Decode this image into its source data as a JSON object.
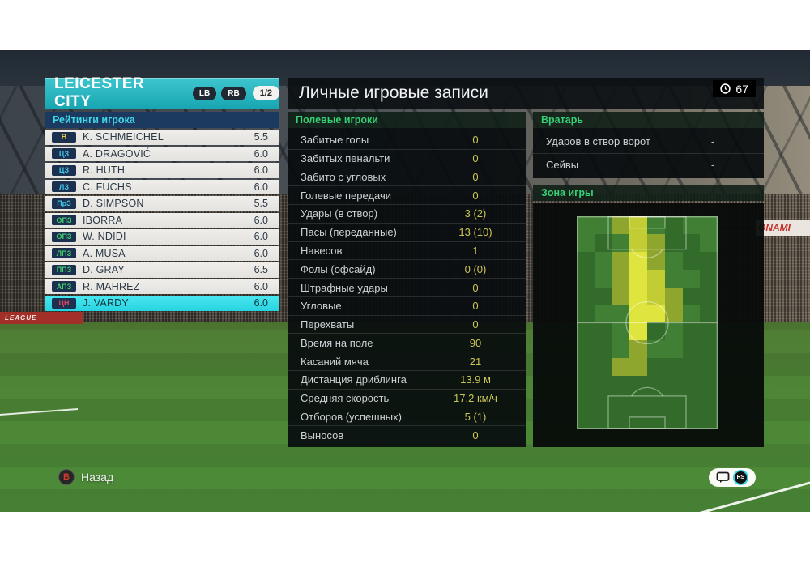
{
  "header": {
    "team_name": "LEICESTER CITY",
    "prev_button": "LB",
    "next_button": "RB",
    "page_indicator": "1/2",
    "clock_value": "67"
  },
  "ratings_panel": {
    "title": "Рейтинги игрока",
    "players": [
      {
        "pos": "В",
        "pos_color": "#e6d23c",
        "name": "K. SCHMEICHEL",
        "rating": "5.5",
        "selected": false
      },
      {
        "pos": "ЦЗ",
        "pos_color": "#41c8e8",
        "name": "A. DRAGOVIĆ",
        "rating": "6.0",
        "selected": false
      },
      {
        "pos": "ЦЗ",
        "pos_color": "#41c8e8",
        "name": "R. HUTH",
        "rating": "6.0",
        "selected": false
      },
      {
        "pos": "ЛЗ",
        "pos_color": "#41c8e8",
        "name": "C. FUCHS",
        "rating": "6.0",
        "selected": false
      },
      {
        "pos": "ПрЗ",
        "pos_color": "#41c8e8",
        "name": "D. SIMPSON",
        "rating": "5.5",
        "selected": false
      },
      {
        "pos": "ОПЗ",
        "pos_color": "#43d16b",
        "name": "IBORRA",
        "rating": "6.0",
        "selected": false
      },
      {
        "pos": "ОПЗ",
        "pos_color": "#43d16b",
        "name": "W. NDIDI",
        "rating": "6.0",
        "selected": false
      },
      {
        "pos": "ЛПЗ",
        "pos_color": "#43d16b",
        "name": "A. MUSA",
        "rating": "6.0",
        "selected": false
      },
      {
        "pos": "ППЗ",
        "pos_color": "#43d16b",
        "name": "D. GRAY",
        "rating": "6.5",
        "selected": false
      },
      {
        "pos": "АПЗ",
        "pos_color": "#43d16b",
        "name": "R. MAHREZ",
        "rating": "6.0",
        "selected": false
      },
      {
        "pos": "ЦН",
        "pos_color": "#e0475e",
        "name": "J. VARDY",
        "rating": "6.0",
        "selected": true
      }
    ]
  },
  "records_panel": {
    "title": "Личные игровые записи",
    "field_players_section": {
      "title": "Полевые игроки",
      "stats": [
        {
          "label": "Забитые голы",
          "value": "0"
        },
        {
          "label": "Забитых пенальти",
          "value": "0"
        },
        {
          "label": "Забито с угловых",
          "value": "0"
        },
        {
          "label": "Голевые передачи",
          "value": "0"
        },
        {
          "label": "Удары (в створ)",
          "value": "3 (2)"
        },
        {
          "label": "Пасы (переданные)",
          "value": "13 (10)"
        },
        {
          "label": "Навесов",
          "value": "1"
        },
        {
          "label": "Фолы (офсайд)",
          "value": "0 (0)"
        },
        {
          "label": "Штрафные удары",
          "value": "0"
        },
        {
          "label": "Угловые",
          "value": "0"
        },
        {
          "label": "Перехваты",
          "value": "0"
        },
        {
          "label": "Время на поле",
          "value": "90"
        },
        {
          "label": "Касаний мяча",
          "value": "21"
        },
        {
          "label": "Дистанция дриблинга",
          "value": "13.9 м"
        },
        {
          "label": "Средняя скорость",
          "value": "17.2 км/ч"
        },
        {
          "label": "Отборов (успешных)",
          "value": "5 (1)"
        },
        {
          "label": "Выносов",
          "value": "0"
        }
      ]
    },
    "goalkeeper_section": {
      "title": "Вратарь",
      "stats": [
        {
          "label": "Ударов в створ ворот",
          "value": "-"
        },
        {
          "label": "Сейвы",
          "value": "-"
        }
      ]
    },
    "zone_section": {
      "title": "Зона игры"
    }
  },
  "heatmap": {
    "palette": [
      "#2a5e26",
      "#336b2a",
      "#417f34",
      "#8fa62e",
      "#c2cc33",
      "#dfe53e"
    ],
    "grid": [
      [
        2,
        2,
        3,
        4,
        2,
        1,
        2,
        2
      ],
      [
        2,
        1,
        2,
        4,
        3,
        1,
        1,
        2
      ],
      [
        1,
        2,
        3,
        5,
        3,
        2,
        1,
        1
      ],
      [
        1,
        2,
        3,
        5,
        4,
        2,
        2,
        1
      ],
      [
        1,
        1,
        3,
        5,
        4,
        3,
        1,
        1
      ],
      [
        1,
        2,
        2,
        5,
        5,
        3,
        2,
        1
      ],
      [
        1,
        1,
        2,
        5,
        1,
        2,
        1,
        1
      ],
      [
        1,
        1,
        2,
        3,
        2,
        2,
        1,
        1
      ],
      [
        1,
        1,
        3,
        3,
        1,
        1,
        1,
        1
      ],
      [
        1,
        1,
        1,
        1,
        1,
        1,
        1,
        1
      ],
      [
        1,
        1,
        1,
        1,
        1,
        1,
        1,
        1
      ],
      [
        1,
        1,
        1,
        1,
        1,
        1,
        1,
        1
      ]
    ]
  },
  "footer": {
    "back_button_letter": "B",
    "back_label": "Назад",
    "stick_label": "RS"
  },
  "background": {
    "ad_left_text": "LEAGUE",
    "ad_right_text": "ONAMI"
  }
}
